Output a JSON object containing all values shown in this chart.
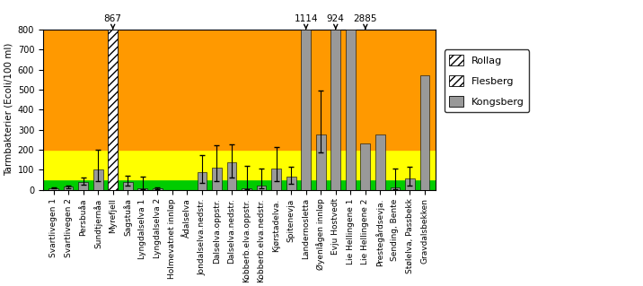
{
  "categories": [
    "Svartlivegen 1",
    "Svartlivegen 2",
    "Persbuåa",
    "Sundtjernåa",
    "Myrefjell",
    "Sagstuåa",
    "Lyngdalselva 1",
    "Lyngdalselva 2",
    "Holmevatnet innløp",
    "Ådalselva",
    "Jondalselva.nedstr.",
    "Dalselva.oppstr.",
    "Dalselva.nedstr.",
    "Kobberb.elva.oppstr.",
    "Kobberb.elva.nedstr.",
    "Kjørstadelva.",
    "Spitenevja",
    "Landernosletta",
    "Øyenlågen innløp",
    "Evju Hostvedt",
    "Lie Hellingene 1",
    "Lie Hellingene 2",
    "Prestegårdsevja.",
    "Sending, Bente",
    "Stølelva, Passbekk",
    "Gravdalsbekken"
  ],
  "bar_values": [
    8,
    14,
    38,
    100,
    800,
    38,
    7,
    5,
    0,
    0,
    90,
    110,
    135,
    5,
    20,
    105,
    65,
    800,
    275,
    800,
    800,
    232,
    275,
    10,
    55,
    570
  ],
  "error_upper": [
    3,
    8,
    22,
    100,
    0,
    30,
    60,
    8,
    0,
    0,
    85,
    110,
    90,
    115,
    85,
    110,
    50,
    0,
    220,
    0,
    0,
    0,
    0,
    95,
    60,
    0
  ],
  "error_lower": [
    3,
    6,
    14,
    55,
    0,
    18,
    5,
    3,
    0,
    0,
    55,
    65,
    75,
    3,
    12,
    60,
    35,
    0,
    90,
    0,
    0,
    0,
    0,
    7,
    35,
    0
  ],
  "overflow_labels": {
    "4": "867",
    "17": "1114",
    "19": "924",
    "21": "2885"
  },
  "bar_color": "#999999",
  "hatched_bar_idx": 4,
  "hatch_pattern": "////",
  "bg_green": "#00cc00",
  "bg_green_lo": 0,
  "bg_green_hi": 50,
  "bg_yellow": "#ffff00",
  "bg_yellow_lo": 50,
  "bg_yellow_hi": 200,
  "bg_orange": "#ff9900",
  "bg_orange_lo": 200,
  "bg_orange_hi": 850,
  "ymin": 0,
  "ymax": 800,
  "yticks": [
    0,
    100,
    200,
    300,
    400,
    500,
    600,
    700,
    800
  ],
  "ylabel": "Tarmbakterier (Ecoli/100 ml)",
  "legend_entries": [
    {
      "label": "Rollag",
      "facecolor": "white",
      "hatch": "////"
    },
    {
      "label": "Flesberg",
      "facecolor": "white",
      "hatch": "////"
    },
    {
      "label": "Kongsberg",
      "facecolor": "#999999",
      "hatch": ""
    }
  ],
  "tick_fontsize": 6.5,
  "ylabel_fontsize": 7.5,
  "ytick_fontsize": 7,
  "annot_fontsize": 7.5,
  "legend_fontsize": 8,
  "bar_width": 0.65
}
